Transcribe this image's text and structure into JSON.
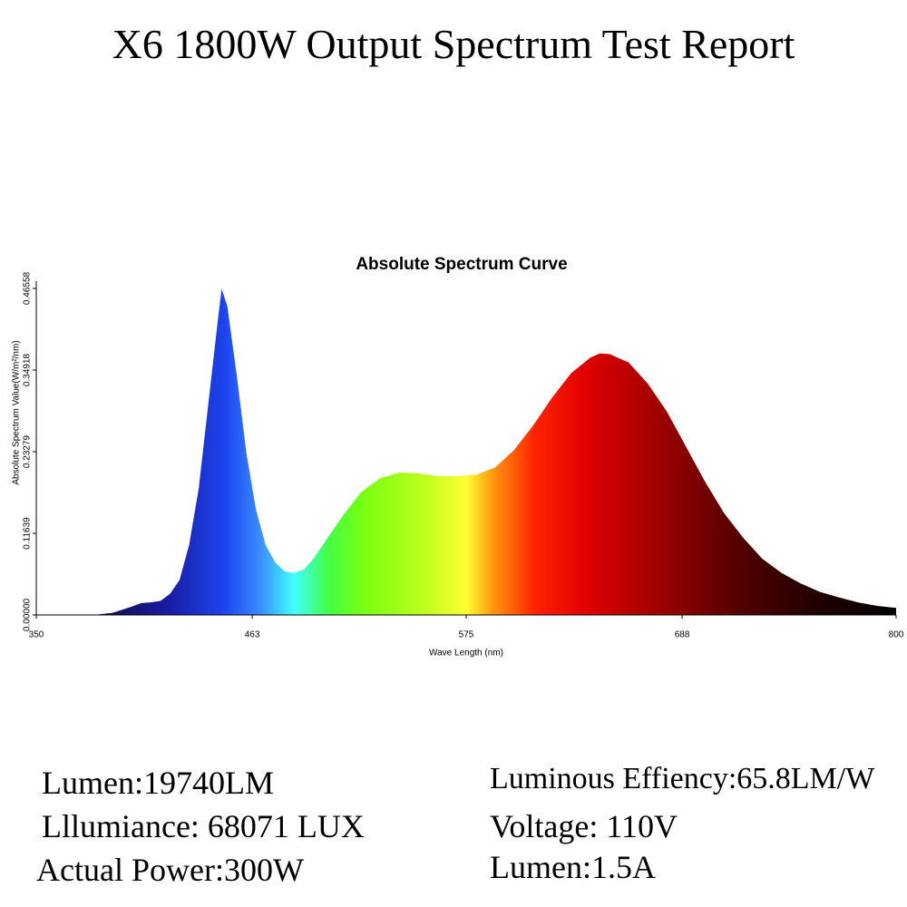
{
  "title": "X6 1800W Output Spectrum Test Report",
  "stats": {
    "left": [
      "Lumen:19740LM",
      "Lllumiance: 68071 LUX",
      "Actual Power:300W"
    ],
    "right": [
      "Luminous Effiency:65.8LM/W",
      "Voltage: 110V",
      "Lumen:1.5A"
    ]
  },
  "chart_data": {
    "type": "area",
    "title": "Absolute Spectrum Curve",
    "xlabel": "Wave Length (nm)",
    "ylabel": "Absolute Spectrum Value(W/m²/nm)",
    "x": [
      350,
      380,
      390,
      400,
      405,
      410,
      415,
      420,
      425,
      430,
      435,
      440,
      445,
      447,
      450,
      455,
      460,
      465,
      470,
      475,
      480,
      485,
      490,
      495,
      500,
      510,
      520,
      530,
      540,
      550,
      560,
      570,
      580,
      590,
      600,
      610,
      620,
      630,
      640,
      645,
      650,
      660,
      670,
      680,
      690,
      700,
      710,
      720,
      730,
      740,
      750,
      760,
      770,
      780,
      790,
      800
    ],
    "values": [
      0,
      0,
      0.003,
      0.012,
      0.017,
      0.018,
      0.02,
      0.03,
      0.05,
      0.1,
      0.18,
      0.3,
      0.42,
      0.465,
      0.44,
      0.34,
      0.23,
      0.15,
      0.1,
      0.075,
      0.062,
      0.06,
      0.065,
      0.08,
      0.1,
      0.14,
      0.175,
      0.195,
      0.203,
      0.202,
      0.198,
      0.198,
      0.2,
      0.21,
      0.235,
      0.27,
      0.31,
      0.345,
      0.367,
      0.373,
      0.372,
      0.36,
      0.33,
      0.29,
      0.24,
      0.19,
      0.145,
      0.11,
      0.08,
      0.06,
      0.045,
      0.033,
      0.025,
      0.018,
      0.013,
      0.01
    ],
    "xlim": [
      350,
      800
    ],
    "xticks": [
      350,
      463,
      575,
      688,
      800
    ],
    "ylim": [
      0,
      0.46558
    ],
    "yticks": [
      {
        "value": 0,
        "label": "0.00000"
      },
      0.11639,
      0.23279,
      0.34918,
      0.46558
    ],
    "grid": false
  }
}
